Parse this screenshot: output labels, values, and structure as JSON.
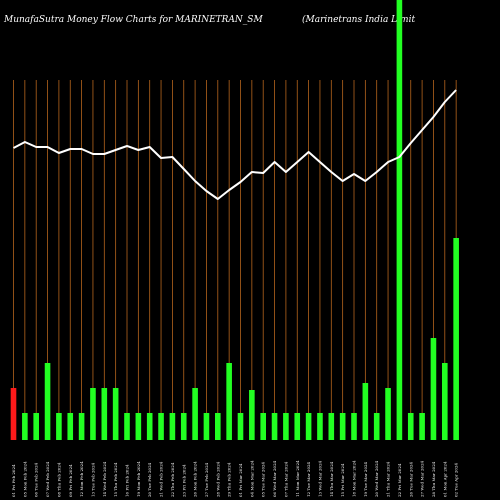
{
  "chart_data": {
    "type": "bar",
    "title_left": "MunafaSutra  Money Flow  Charts for MARINETRAN_SM",
    "title_right": "(Marinetrans India  Limit",
    "colors": {
      "background": "#000000",
      "gridline": "#b5651d",
      "bar_up": "#22ff22",
      "bar_down": "#ff1a1a",
      "line": "#ffffff",
      "text": "#ffffff"
    },
    "grid": true,
    "categories": [
      "01 Fri Feb 2024",
      "05 Mon Feb 2024",
      "06 Tue Feb 2024",
      "07 Wed Feb 2024",
      "08 Thu Feb 2024",
      "09 Fri Feb 2024",
      "12 Mon Feb 2024",
      "13 Tue Feb 2024",
      "14 Wed Feb 2024",
      "15 Thu Feb 2024",
      "16 Fri Feb 2024",
      "19 Mon Feb 2024",
      "20 Tue Feb 2024",
      "21 Wed Feb 2024",
      "22 Thu Feb 2024",
      "23 Fri Feb 2024",
      "26 Mon Feb 2024",
      "27 Tue Feb 2024",
      "28 Wed Feb 2024",
      "29 Thu Feb 2024",
      "01 Fri Mar 2024",
      "04 Mon Mar 2024",
      "05 Tue Mar 2024",
      "06 Wed Mar 2024",
      "07 Thu Mar 2024",
      "11 Mon Mar 2024",
      "12 Tue Mar 2024",
      "13 Wed Mar 2024",
      "14 Thu Mar 2024",
      "15 Fri Mar 2024",
      "18 Mon Mar 2024",
      "19 Tue Mar 2024",
      "20 Wed Mar 2024",
      "21 Thu Mar 2024",
      "22 Fri Mar 2024",
      "26 Tue Mar 2024",
      "27 Wed Mar 2024",
      "28 Thu Mar 2024",
      "01 Mon Apr 2024",
      "02 Tue Apr 2024"
    ],
    "series": [
      {
        "type": "bar",
        "values": [
          52,
          27,
          27,
          77,
          27,
          27,
          27,
          52,
          52,
          52,
          27,
          27,
          27,
          27,
          27,
          27,
          52,
          27,
          27,
          77,
          27,
          50,
          27,
          27,
          27,
          27,
          27,
          27,
          27,
          27,
          27,
          57,
          27,
          52,
          440,
          27,
          27,
          102,
          77,
          202
        ],
        "colors": [
          "red",
          "green",
          "green",
          "green",
          "green",
          "green",
          "green",
          "green",
          "green",
          "green",
          "green",
          "green",
          "green",
          "green",
          "green",
          "green",
          "green",
          "green",
          "green",
          "green",
          "green",
          "green",
          "green",
          "green",
          "green",
          "green",
          "green",
          "green",
          "green",
          "green",
          "green",
          "green",
          "green",
          "green",
          "green",
          "green",
          "green",
          "green",
          "green",
          "green"
        ]
      },
      {
        "type": "line",
        "values": [
          292,
          298,
          293,
          293,
          287,
          291,
          291,
          286,
          286,
          290,
          294,
          290,
          293,
          282,
          283,
          271,
          259,
          249,
          241,
          250,
          258,
          268,
          267,
          278,
          268,
          278,
          288,
          278,
          268,
          259,
          266,
          259,
          268,
          278,
          283,
          297,
          310,
          323,
          338,
          350
        ]
      }
    ],
    "ylim": [
      0,
      440
    ]
  }
}
